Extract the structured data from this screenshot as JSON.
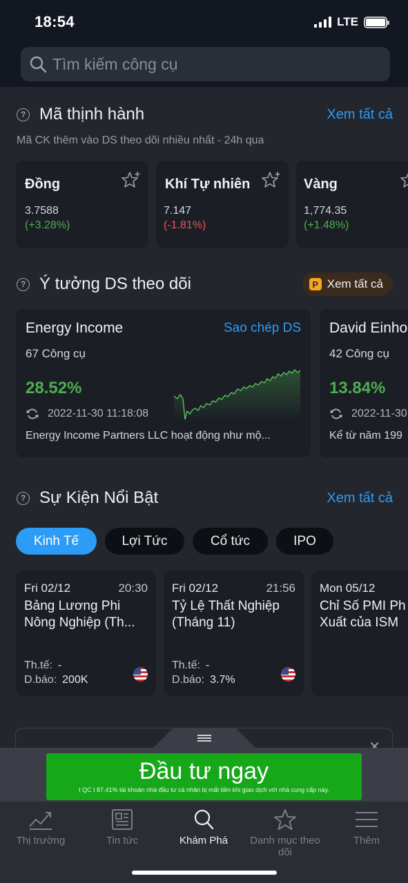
{
  "status": {
    "time": "18:54",
    "network": "LTE"
  },
  "search": {
    "placeholder": "Tìm kiếm công cụ"
  },
  "trending": {
    "title": "Mã thịnh hành",
    "see_all": "Xem tất cả",
    "subtitle": "Mã CK thêm vào DS theo dõi nhiều nhất - 24h qua",
    "items": [
      {
        "name": "Đồng",
        "price": "3.7588",
        "change": "(+3.28%)",
        "direction": "up"
      },
      {
        "name": "Khí Tự nhiên",
        "price": "7.147",
        "change": "(-1.81%)",
        "direction": "down"
      },
      {
        "name": "Vàng",
        "price": "1,774.35",
        "change": "(+1.48%)",
        "direction": "up"
      }
    ]
  },
  "watchlists": {
    "title": "Ý tưởng DS theo dõi",
    "see_all": "Xem tất cả",
    "items": [
      {
        "name": "Energy Income",
        "copy": "Sao chép DS",
        "count": "67 Công cụ",
        "return": "28.52%",
        "updated": "2022-11-30 11:18:08",
        "desc": "Energy Income Partners LLC hoạt động như mộ..."
      },
      {
        "name": "David Einho",
        "count": "42 Công cụ",
        "return": "13.84%",
        "updated": "2022-11-30",
        "desc": "Kể từ năm 199"
      }
    ]
  },
  "events": {
    "title": "Sự Kiện Nổi Bật",
    "see_all": "Xem tất cả",
    "tabs": [
      "Kinh Tế",
      "Lợi Tức",
      "Cổ tức",
      "IPO"
    ],
    "active_tab": "Kinh Tế",
    "items": [
      {
        "date": "Fri 02/12",
        "time": "20:30",
        "title": "Bảng Lương Phi Nông Nghiệp (Th...",
        "actual_label": "Th.tế:",
        "actual": "-",
        "forecast_label": "D.báo:",
        "forecast": "200K",
        "country": "US"
      },
      {
        "date": "Fri 02/12",
        "time": "21:56",
        "title": "Tỷ Lệ Thất Nghiệp (Tháng 11)",
        "actual_label": "Th.tế:",
        "actual": "-",
        "forecast_label": "D.báo:",
        "forecast": "3.7%",
        "country": "US"
      },
      {
        "date": "Mon 05/12",
        "time": "",
        "title": "Chỉ Số PMI Ph Xuất của ISM",
        "country": "US"
      }
    ]
  },
  "ad": {
    "cta": "Đầu tư ngay",
    "disclaimer": "I QC I 87.41% tài khoản nhà đầu tư cá nhân bị mất tiền khi giao dịch với nhà cung cấp này."
  },
  "nav": [
    {
      "label": "Thị trường",
      "icon": "chart-icon",
      "active": false
    },
    {
      "label": "Tin tức",
      "icon": "news-icon",
      "active": false
    },
    {
      "label": "Khám Phá",
      "icon": "search-icon",
      "active": true
    },
    {
      "label": "Danh mục theo dõi",
      "icon": "star-icon",
      "active": false
    },
    {
      "label": "Thêm",
      "icon": "menu-icon",
      "active": false
    }
  ],
  "colors": {
    "accent": "#2d9cf6",
    "up": "#4caf50",
    "down": "#f2524a",
    "ad_green": "#17a81a"
  }
}
